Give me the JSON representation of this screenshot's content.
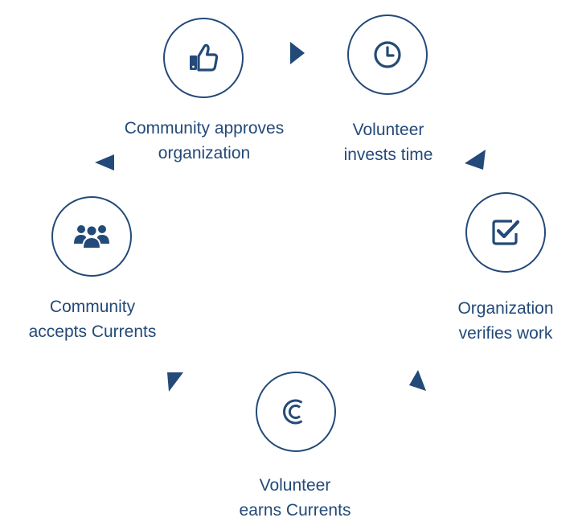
{
  "colors": {
    "primary": "#234a78",
    "background": "#ffffff"
  },
  "steps": [
    {
      "id": "approve",
      "icon": "thumbs-up-icon",
      "lines": [
        "Community approves",
        "organization"
      ]
    },
    {
      "id": "invest",
      "icon": "clock-icon",
      "lines": [
        "Volunteer",
        "invests time"
      ]
    },
    {
      "id": "verify",
      "icon": "checkbox-icon",
      "lines": [
        "Organization",
        "verifies work"
      ]
    },
    {
      "id": "earn",
      "icon": "currents-coin-icon",
      "lines": [
        "Volunteer",
        "earns Currents"
      ]
    },
    {
      "id": "accept",
      "icon": "group-icon",
      "lines": [
        "Community",
        "accepts Currents"
      ]
    }
  ]
}
